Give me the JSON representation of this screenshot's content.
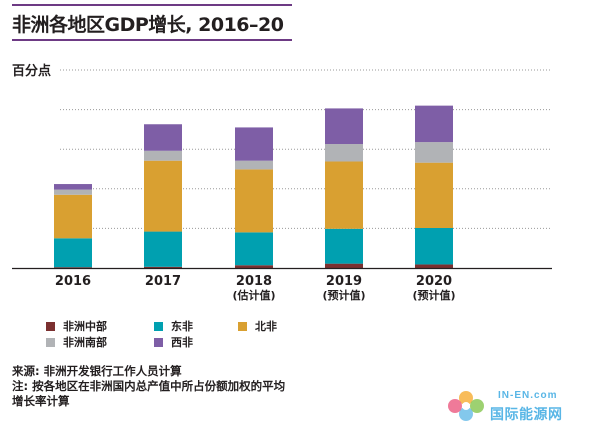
{
  "header": {
    "title": "非洲各地区GDP增长, 2016–20",
    "unit": "百分点"
  },
  "chart_data": {
    "type": "bar",
    "stacked": true,
    "categories": [
      "2016",
      "2017",
      "2018",
      "2019",
      "2020"
    ],
    "category_notes": [
      "",
      "",
      "(估计值)",
      "(预计值)",
      "(预计值)"
    ],
    "series": [
      {
        "name": "非洲中部",
        "color": "#7b3030",
        "values": [
          0.02,
          0.03,
          0.07,
          0.11,
          0.09
        ]
      },
      {
        "name": "东非",
        "color": "#00a0b0",
        "values": [
          0.73,
          0.89,
          0.83,
          0.88,
          0.92
        ]
      },
      {
        "name": "北非",
        "color": "#d9a031",
        "values": [
          1.1,
          1.79,
          1.59,
          1.7,
          1.65
        ]
      },
      {
        "name": "非洲南部",
        "color": "#b1b3b6",
        "values": [
          0.13,
          0.25,
          0.22,
          0.44,
          0.52
        ]
      },
      {
        "name": "西非",
        "color": "#7e5ea6",
        "values": [
          0.14,
          0.67,
          0.84,
          0.9,
          0.92
        ]
      }
    ],
    "ylim": [
      0,
      5
    ],
    "gridlines": [
      1,
      2,
      3,
      4,
      5
    ],
    "grid": "dotted horizontal",
    "legend_position": "bottom"
  },
  "footnotes": {
    "source": "来源: 非洲开发银行工作人员计算",
    "note_line1": "注: 按各地区在非洲国内总产值中所占份额加权的平均",
    "note_line2": "增长率计算"
  },
  "watermark": {
    "line1": "IN-EN.com",
    "line2": "国际能源网",
    "colors": [
      "#f5a623",
      "#7cc242",
      "#59b6e6",
      "#e94e77"
    ]
  }
}
